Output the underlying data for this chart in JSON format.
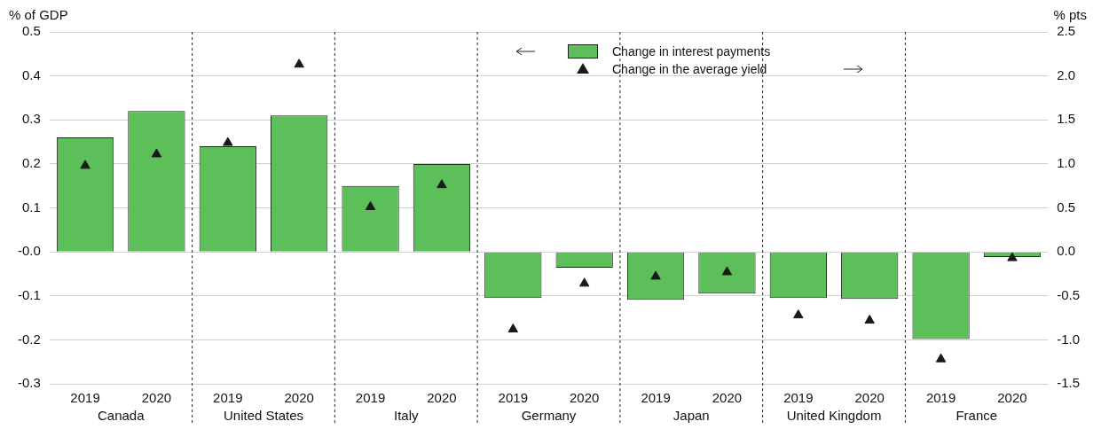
{
  "chart_data": {
    "type": "bar",
    "ylabel": "% of GDP",
    "y2label": "% pts",
    "categories": [
      "2019",
      "2020",
      "2019",
      "2020",
      "2019",
      "2020",
      "2019",
      "2020",
      "2019",
      "2020",
      "2019",
      "2020",
      "2019",
      "2020"
    ],
    "annotations": [
      "Canada",
      "United States",
      "Italy",
      "Germany",
      "Japan",
      "United Kingdom",
      "France"
    ],
    "series": [
      {
        "name": "Change in interest payments",
        "color": "#5cbf5a",
        "values": [
          0.26,
          0.32,
          0.24,
          0.31,
          0.15,
          0.2,
          -0.105,
          -0.036,
          -0.109,
          -0.095,
          -0.105,
          -0.107,
          -0.198,
          -0.012
        ]
      },
      {
        "name": "Change in the average yield",
        "type": "scatter",
        "axis": "y2",
        "marker": "triangle",
        "color": "#1a1a1a",
        "values": [
          0.98,
          1.11,
          1.24,
          2.13,
          0.51,
          0.76,
          -0.88,
          -0.36,
          -0.28,
          -0.23,
          -0.72,
          -0.78,
          -1.22,
          -0.07
        ]
      }
    ],
    "ylim": [
      -0.3,
      0.5
    ],
    "yticks": [
      -0.3,
      -0.2,
      -0.1,
      {
        "value": 0,
        "label": "-0.0"
      },
      0.1,
      0.2,
      0.3,
      0.4,
      0.5
    ],
    "y2lim": [
      -1.5,
      2.5
    ],
    "y2ticks": [
      -1.5,
      {
        "value": -1,
        "label": "-1.0"
      },
      -0.5,
      {
        "value": 0,
        "label": "0.0"
      },
      0.5,
      {
        "value": 1,
        "label": "1.0"
      },
      1.5,
      {
        "value": 2,
        "label": "2.0"
      },
      2.5
    ],
    "grid": "y",
    "legend": "top"
  }
}
